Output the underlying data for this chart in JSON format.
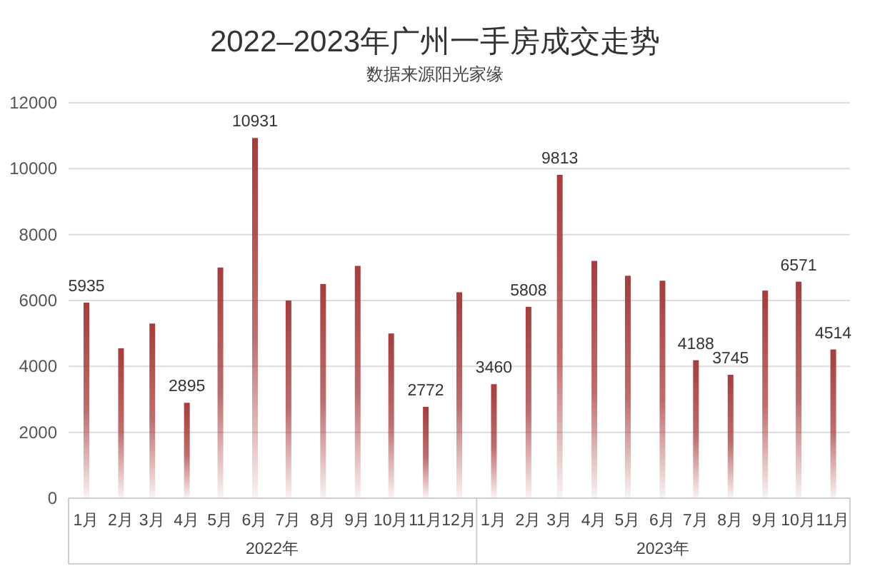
{
  "chart_data": {
    "type": "bar",
    "title": "2022–2023年广州一手房成交走势",
    "subtitle": "数据来源阳光家缘",
    "x": [
      "2022-01",
      "2022-02",
      "2022-03",
      "2022-04",
      "2022-05",
      "2022-06",
      "2022-07",
      "2022-08",
      "2022-09",
      "2022-10",
      "2022-11",
      "2022-12",
      "2023-01",
      "2023-02",
      "2023-03",
      "2023-04",
      "2023-05",
      "2023-06",
      "2023-07",
      "2023-08",
      "2023-09",
      "2023-10",
      "2023-11"
    ],
    "values": [
      5935,
      4550,
      5300,
      2895,
      7000,
      10931,
      6000,
      6500,
      7050,
      5000,
      2772,
      6250,
      3460,
      5808,
      9813,
      7200,
      6750,
      6600,
      4188,
      3745,
      6300,
      6571,
      4514
    ],
    "value_labels": [
      "5935",
      null,
      null,
      "2895",
      null,
      "10931",
      null,
      null,
      null,
      null,
      "2772",
      null,
      "3460",
      "5808",
      "9813",
      null,
      null,
      null,
      "4188",
      "3745",
      null,
      "6571",
      "4514"
    ],
    "color": "#a83c3c",
    "xlim": [
      "2021-12-16",
      "2023-11-16"
    ],
    "xticks": [
      {
        "value": "2022-01",
        "label": "1月"
      },
      {
        "value": "2022-02",
        "label": "2月"
      },
      {
        "value": "2022-03",
        "label": "3月"
      },
      {
        "value": "2022-04",
        "label": "4月"
      },
      {
        "value": "2022-05",
        "label": "5月"
      },
      {
        "value": "2022-06",
        "label": "6月"
      },
      {
        "value": "2022-07",
        "label": "7月"
      },
      {
        "value": "2022-08",
        "label": "8月"
      },
      {
        "value": "2022-09",
        "label": "9月"
      },
      {
        "value": "2022-10",
        "label": "10月"
      },
      {
        "value": "2022-11",
        "label": "11月"
      },
      {
        "value": "2022-12",
        "label": "12月"
      },
      {
        "value": "2023-01",
        "label": "1月"
      },
      {
        "value": "2023-02",
        "label": "2月"
      },
      {
        "value": "2023-03",
        "label": "3月"
      },
      {
        "value": "2023-04",
        "label": "4月"
      },
      {
        "value": "2023-05",
        "label": "5月"
      },
      {
        "value": "2023-06",
        "label": "6月"
      },
      {
        "value": "2023-07",
        "label": "7月"
      },
      {
        "value": "2023-08",
        "label": "8月"
      },
      {
        "value": "2023-09",
        "label": "9月"
      },
      {
        "value": "2023-10",
        "label": "10月"
      },
      {
        "value": "2023-11",
        "label": "11月"
      }
    ],
    "ylim": [
      0,
      12000
    ],
    "yticks": [
      0,
      2000,
      4000,
      6000,
      8000,
      10000,
      12000
    ],
    "grid": "y",
    "annotations": [
      "2022年",
      "2023年"
    ]
  }
}
